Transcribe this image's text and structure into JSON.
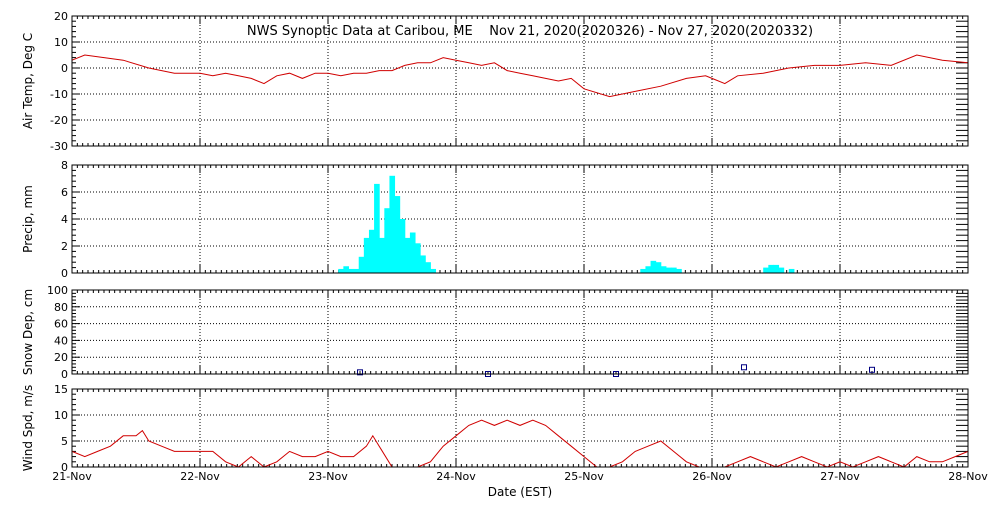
{
  "title": "NWS Synoptic Data at Caribou, ME    Nov 21, 2020(2020326) - Nov 27, 2020(2020332)",
  "xlabel": "Date (EST)",
  "x_ticks": [
    "21-Nov",
    "22-Nov",
    "23-Nov",
    "24-Nov",
    "25-Nov",
    "26-Nov",
    "27-Nov",
    "28-Nov"
  ],
  "colors": {
    "air_temp": "#d00000",
    "precip": "#00ffff",
    "snow": "#000080",
    "wind": "#d00000"
  },
  "chart_data": [
    {
      "type": "line",
      "ylabel": "Air Temp, Deg C",
      "ylim": [
        -30,
        20
      ],
      "yticks": [
        -30,
        -20,
        -10,
        0,
        10,
        20
      ],
      "x_unit": "days since 21-Nov 00:00 EST",
      "x": [
        0,
        0.1,
        0.25,
        0.4,
        0.6,
        0.8,
        1.0,
        1.1,
        1.2,
        1.3,
        1.4,
        1.5,
        1.6,
        1.7,
        1.8,
        1.9,
        2.0,
        2.1,
        2.2,
        2.3,
        2.4,
        2.5,
        2.6,
        2.7,
        2.8,
        2.9,
        3.0,
        3.1,
        3.2,
        3.3,
        3.4,
        3.5,
        3.6,
        3.7,
        3.8,
        3.9,
        4.0,
        4.2,
        4.4,
        4.6,
        4.8,
        4.95,
        5.0,
        5.1,
        5.2,
        5.4,
        5.6,
        5.8,
        6.0,
        6.2,
        6.4,
        6.6,
        6.8,
        7.0
      ],
      "series": [
        {
          "values": [
            3,
            5,
            4,
            3,
            0,
            -2,
            -2,
            -3,
            -2,
            -3,
            -4,
            -6,
            -3,
            -2,
            -4,
            -2,
            -2,
            -3,
            -2,
            -2,
            -1,
            -1,
            1,
            2,
            2,
            4,
            3,
            2,
            1,
            2,
            -1,
            -2,
            -3,
            -4,
            -5,
            -4,
            -8,
            -11,
            -9,
            -7,
            -4,
            -3,
            -4,
            -6,
            -3,
            -2,
            0,
            1,
            1,
            2,
            1,
            5,
            3,
            2
          ]
        }
      ]
    },
    {
      "type": "bar",
      "ylabel": "Precip, mm",
      "ylim": [
        0,
        8
      ],
      "yticks": [
        0,
        2,
        4,
        6,
        8
      ],
      "x_unit": "days since 21-Nov 00:00 EST",
      "x": [
        2.08,
        2.12,
        2.16,
        2.2,
        2.24,
        2.28,
        2.32,
        2.36,
        2.4,
        2.44,
        2.48,
        2.52,
        2.56,
        2.6,
        2.64,
        2.68,
        2.72,
        2.76,
        2.8,
        2.84,
        2.88,
        4.44,
        4.48,
        4.52,
        4.56,
        4.6,
        4.64,
        4.68,
        4.72,
        4.76,
        4.8,
        4.84,
        4.88,
        4.92,
        4.96,
        5.0,
        5.04,
        5.08,
        5.12,
        5.16,
        5.2,
        5.24,
        5.28,
        5.32,
        5.36,
        5.4,
        5.44,
        5.48,
        5.52,
        5.56,
        5.6,
        5.64
      ],
      "series": [
        {
          "values": [
            0.3,
            0.5,
            0.3,
            0.3,
            1.2,
            2.6,
            3.2,
            6.6,
            2.6,
            4.8,
            7.2,
            5.7,
            4.0,
            2.6,
            3.0,
            2.2,
            1.3,
            0.8,
            0.3,
            0,
            0,
            0.3,
            0.5,
            0.9,
            0.8,
            0.5,
            0.4,
            0.4,
            0.3,
            0,
            0,
            0,
            0,
            0,
            0,
            0,
            0,
            0,
            0,
            0,
            0,
            0,
            0,
            0,
            0,
            0.4,
            0.6,
            0.6,
            0.4,
            0,
            0.3,
            0
          ]
        }
      ]
    },
    {
      "type": "scatter",
      "ylabel": "Snow Dep, cm",
      "ylim": [
        0,
        100
      ],
      "yticks": [
        0,
        20,
        40,
        60,
        80,
        100
      ],
      "x_unit": "days since 21-Nov 00:00 EST",
      "x": [
        2.25,
        3.25,
        4.25,
        5.25,
        6.25
      ],
      "series": [
        {
          "values": [
            2,
            0,
            0,
            8,
            5
          ]
        }
      ]
    },
    {
      "type": "line",
      "ylabel": "Wind Spd, m/s",
      "ylim": [
        0,
        15
      ],
      "yticks": [
        0,
        5,
        10,
        15
      ],
      "x_unit": "days since 21-Nov 00:00 EST",
      "x": [
        0,
        0.1,
        0.2,
        0.3,
        0.4,
        0.5,
        0.55,
        0.6,
        0.7,
        0.8,
        0.9,
        1.0,
        1.1,
        1.2,
        1.3,
        1.4,
        1.5,
        1.6,
        1.7,
        1.8,
        1.9,
        2.0,
        2.1,
        2.2,
        2.3,
        2.35,
        2.4,
        2.5,
        2.6,
        2.7,
        2.8,
        2.9,
        3.0,
        3.1,
        3.2,
        3.3,
        3.4,
        3.5,
        3.6,
        3.7,
        3.8,
        3.9,
        4.0,
        4.1,
        4.2,
        4.3,
        4.4,
        4.5,
        4.6,
        4.7,
        4.8,
        4.9,
        5.0,
        5.1,
        5.2,
        5.3,
        5.4,
        5.5,
        5.6,
        5.7,
        5.8,
        5.9,
        6.0,
        6.1,
        6.2,
        6.3,
        6.4,
        6.5,
        6.6,
        6.7,
        6.8,
        6.9,
        7.0
      ],
      "series": [
        {
          "values": [
            3,
            2,
            3,
            4,
            6,
            6,
            7,
            5,
            4,
            3,
            3,
            3,
            3,
            1,
            0,
            2,
            0,
            1,
            3,
            2,
            2,
            3,
            2,
            2,
            4,
            6,
            4,
            0,
            0,
            0,
            1,
            4,
            6,
            8,
            9,
            8,
            9,
            8,
            9,
            8,
            6,
            4,
            2,
            0,
            0,
            1,
            3,
            4,
            5,
            3,
            1,
            0,
            0,
            0,
            1,
            2,
            1,
            0,
            1,
            2,
            1,
            0,
            1,
            0,
            1,
            2,
            1,
            0,
            2,
            1,
            1,
            2,
            3
          ]
        }
      ]
    }
  ]
}
